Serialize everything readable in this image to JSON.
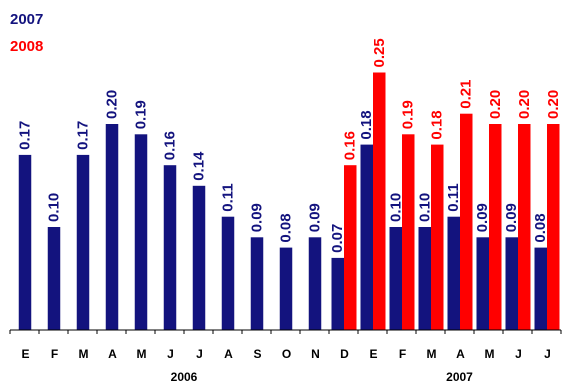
{
  "chart_data": {
    "type": "bar",
    "title": "",
    "xlabel": "",
    "ylabel": "",
    "ylim": [
      0,
      0.26
    ],
    "grid": false,
    "legend_position": "top-left",
    "categories": [
      "E",
      "F",
      "M",
      "A",
      "M",
      "J",
      "J",
      "A",
      "S",
      "O",
      "N",
      "D",
      "E",
      "F",
      "M",
      "A",
      "M",
      "J",
      "J"
    ],
    "year_groups": [
      {
        "label": "2006",
        "start": 0,
        "end": 11
      },
      {
        "label": "2007",
        "start": 12,
        "end": 18
      }
    ],
    "series": [
      {
        "name": "2007",
        "color": "#13137e",
        "values": [
          0.17,
          0.1,
          0.17,
          0.2,
          0.19,
          0.16,
          0.14,
          0.11,
          0.09,
          0.08,
          0.09,
          0.07,
          0.18,
          0.1,
          0.1,
          0.11,
          0.09,
          0.09,
          0.08
        ],
        "labels": [
          "0.17",
          "0.10",
          "0.17",
          "0.20",
          "0.19",
          "0.16",
          "0.14",
          "0.11",
          "0.09",
          "0.08",
          "0.09",
          "0.07",
          "0.18",
          "0.10",
          "0.10",
          "0.11",
          "0.09",
          "0.09",
          "0.08"
        ]
      },
      {
        "name": "2008",
        "color": "#ff0000",
        "values": [
          null,
          null,
          null,
          null,
          null,
          null,
          null,
          null,
          null,
          null,
          null,
          0.16,
          0.25,
          0.19,
          0.18,
          0.21,
          0.2,
          0.2,
          0.2
        ],
        "labels": [
          "",
          "",
          "",
          "",
          "",
          "",
          "",
          "",
          "",
          "",
          "",
          "0.16",
          "0.25",
          "0.19",
          "0.18",
          "0.21",
          "0.20",
          "0.20",
          "0.20"
        ]
      }
    ]
  }
}
